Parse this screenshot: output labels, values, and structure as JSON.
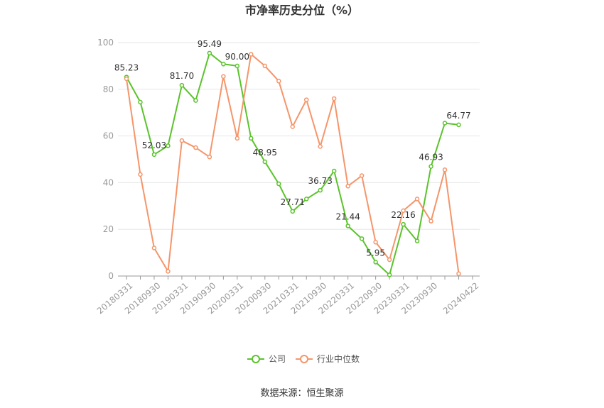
{
  "chart_data": {
    "type": "line",
    "title": "市净率历史分位（%）",
    "source": "数据来源：恒生聚源",
    "ylim": [
      0,
      100
    ],
    "yticks": [
      0,
      20,
      40,
      60,
      80,
      100
    ],
    "grid": true,
    "legend_position": "bottom",
    "x": [
      "20180331",
      "20180630",
      "20180930",
      "20181231",
      "20190331",
      "20190630",
      "20190930",
      "20191231",
      "20200331",
      "20200630",
      "20200930",
      "20201231",
      "20210331",
      "20210630",
      "20210930",
      "20211231",
      "20220331",
      "20220630",
      "20220930",
      "20221231",
      "20230331",
      "20230630",
      "20230930",
      "20231231",
      "20240331",
      "20240422"
    ],
    "x_tick_labels": [
      "20180331",
      "20180930",
      "20190331",
      "20190930",
      "20200331",
      "20200930",
      "20210331",
      "20210930",
      "20220331",
      "20220930",
      "20230331",
      "20230930",
      "20240422"
    ],
    "series": [
      {
        "name": "公司",
        "color": "#5ac32b",
        "values": [
          85.23,
          74.5,
          52.03,
          55.8,
          81.7,
          75.2,
          95.49,
          90.8,
          90.0,
          59.0,
          48.95,
          39.5,
          27.71,
          33.0,
          36.73,
          45.0,
          21.44,
          16.0,
          5.95,
          0.5,
          22.16,
          15.0,
          46.93,
          65.5,
          64.77,
          null
        ],
        "labels": {
          "0": "85.23",
          "2": "52.03",
          "4": "81.70",
          "6": "95.49",
          "8": "90.00",
          "10": "48.95",
          "12": "27.71",
          "14": "36.73",
          "16": "21.44",
          "18": "5.95",
          "20": "22.16",
          "22": "46.93",
          "24": "64.77"
        }
      },
      {
        "name": "行业中位数",
        "color": "#f5956a",
        "values": [
          84.5,
          43.5,
          12.0,
          2.0,
          58.0,
          55.0,
          51.0,
          85.5,
          59.0,
          95.0,
          90.0,
          83.5,
          64.0,
          75.5,
          55.5,
          76.0,
          38.5,
          43.0,
          14.5,
          7.0,
          28.0,
          33.0,
          23.5,
          45.5,
          1.0,
          null
        ]
      }
    ]
  }
}
